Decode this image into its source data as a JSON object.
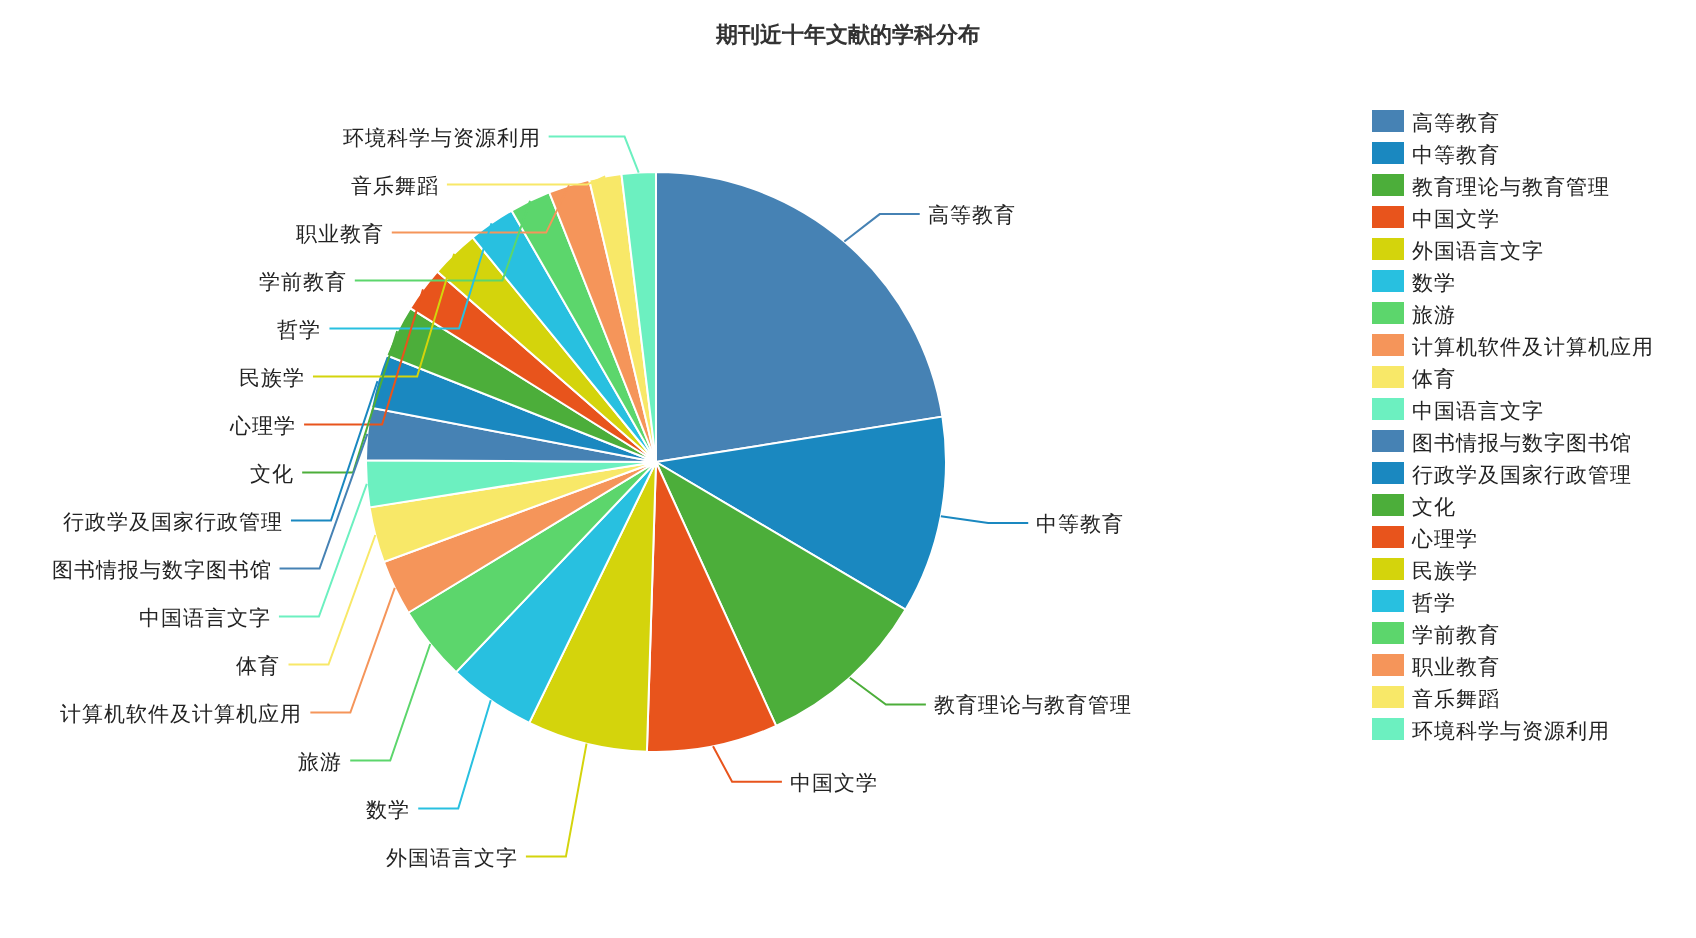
{
  "chart_data": {
    "type": "pie",
    "title": "期刊近十年文献的学科分布",
    "categories": [
      "高等教育",
      "中等教育",
      "教育理论与教育管理",
      "中国文学",
      "外国语言文字",
      "数学",
      "旅游",
      "计算机软件及计算机应用",
      "体育",
      "中国语言文字",
      "图书情报与数字图书馆",
      "行政学及国家行政管理",
      "文化",
      "心理学",
      "民族学",
      "哲学",
      "学前教育",
      "职业教育",
      "音乐舞蹈",
      "环境科学与资源利用"
    ],
    "values": [
      22.5,
      11.0,
      9.7,
      7.3,
      6.7,
      4.9,
      4.2,
      3.1,
      3.1,
      2.6,
      2.9,
      3.0,
      2.9,
      2.5,
      2.7,
      2.6,
      2.3,
      2.3,
      1.8,
      1.9
    ],
    "colors": [
      "#4682b4",
      "#1a88c0",
      "#4cae3a",
      "#e8541c",
      "#d4d40c",
      "#28c0e0",
      "#5cd66c",
      "#f5955a",
      "#f8e868",
      "#6cf0c0",
      "#4682b4",
      "#1a88c0",
      "#4cae3a",
      "#e8541c",
      "#d4d40c",
      "#28c0e0",
      "#5cd66c",
      "#f5955a",
      "#f8e868",
      "#6cf0c0"
    ],
    "legend": "top right"
  }
}
